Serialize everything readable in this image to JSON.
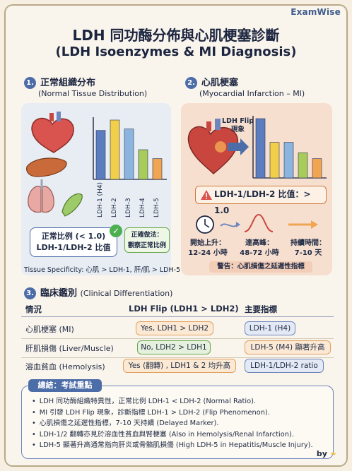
{
  "brand": "ExamWise",
  "title_cn": "LDH 同功酶分佈與心肌梗塞診斷",
  "title_en": "(LDH Isoenzymes & MI Diagnosis)",
  "section1": {
    "num": "1.",
    "title": "正常組織分布",
    "subtitle": "(Normal Tissue Distribution)",
    "normal_ratio_line1": "正常比例 (< 1.0)",
    "normal_ratio_line2": "LDH-1/LDH-2 比值",
    "correct_line1": "正確做法：",
    "correct_line2": "觀察正常比例",
    "specificity": "Tissue Specificity: 心肌 > LDH-1, 肝/肌 > LDH-5"
  },
  "section2": {
    "num": "2.",
    "title": "心肌梗塞",
    "subtitle": "(Myocardial Infarction – MI)",
    "flip_line1": "LDH Flip",
    "flip_line2": "現象",
    "ratio": "LDH-1/LDH-2 比值：> 1.0",
    "timeline": [
      {
        "label": "開始上升：",
        "value": "12-24 小時"
      },
      {
        "label": "達高峰：",
        "value": "48-72 小時"
      },
      {
        "label": "持續時間：",
        "value": "7-10 天"
      }
    ],
    "warning": "警告：心肌損傷之延遲性指標"
  },
  "section3": {
    "num": "3.",
    "title": "臨床鑑別",
    "subtitle": "(Clinical Differentiation)",
    "headers": [
      "情況",
      "LDH Flip (LDH1 > LDH2)",
      "主要指標"
    ],
    "rows": [
      {
        "condition": "心肌梗塞 (MI)",
        "flip": "Yes, LDH1 > LDH2",
        "marker": "LDH-1 (H4)"
      },
      {
        "condition": "肝肌損傷 (Liver/Muscle)",
        "flip": "No, LDH2 > LDH1",
        "marker": "LDH-5 (M4) 顯著升高"
      },
      {
        "condition": "溶血貧血 (Hemolysis)",
        "flip": "Yes (翻轉) , LDH1 & 2 均升高",
        "marker": "LDH-1/LDH-2 ratio"
      }
    ]
  },
  "summary": {
    "title": "總結：考試重點",
    "items": [
      "LDH 同功酶組織特異性，正常比例 LDH-1 < LDH-2 (Normal Ratio).",
      "MI 引發 LDH Flip 現象，診斷指標 LDH-1 > LDH-2 (Flip Phenomenon).",
      "心肌損傷之延遲性指標，7-10 天持續 (Delayed Marker).",
      "LDH-1/2 翻轉亦見於溶血性貧血與腎梗塞 (Also in Hemolysis/Renal Infarction).",
      "LDH-5 顯著升高通常指向肝炎或骨骼肌損傷 (High LDH-5 in Hepatitis/Muscle Injury)."
    ]
  },
  "byline": "by",
  "chart_data": [
    {
      "type": "bar",
      "title": "",
      "categories": [
        "LDH-1 (H4)",
        "LDH-2",
        "LDH-3",
        "LDH-4",
        "LDH-5"
      ],
      "values": [
        3.3,
        4.0,
        3.4,
        2.0,
        1.4
      ],
      "colors": [
        "#5b7dc0",
        "#f2cf4b",
        "#8bb5de",
        "#a8cc5a",
        "#f0a553"
      ]
    },
    {
      "type": "bar",
      "title": "",
      "categories": [
        "LDH-1",
        "LDH-2",
        "LDH-3",
        "LDH-4",
        "LDH-5"
      ],
      "values": [
        4.0,
        2.4,
        2.4,
        1.7,
        1.3
      ],
      "colors": [
        "#5b7dc0",
        "#f2cf4b",
        "#8bb5de",
        "#a8cc5a",
        "#f0a553"
      ]
    }
  ]
}
